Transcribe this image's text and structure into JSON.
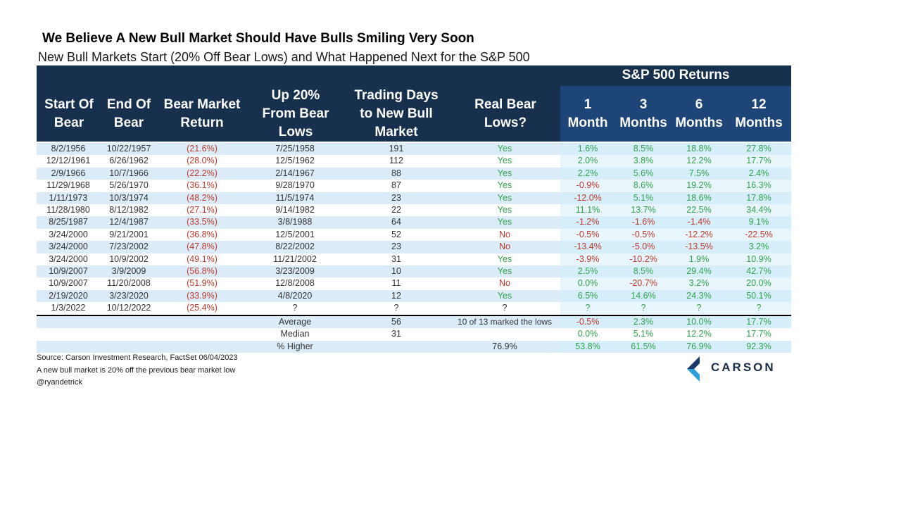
{
  "title": "We Believe A New Bull Market Should Have Bulls Smiling Very Soon",
  "subtitle": "New Bull Markets Start (20% Off Bear Lows) and What Happened Next for the S&P 500",
  "headers": {
    "start": [
      "Start Of",
      "Bear"
    ],
    "end": [
      "End Of",
      "Bear"
    ],
    "bear_return": [
      "Bear Market",
      "Return"
    ],
    "up20": [
      "Up 20%",
      "From Bear",
      "Lows"
    ],
    "days": [
      "Trading Days",
      "to New Bull",
      "Market"
    ],
    "real": [
      "Real Bear",
      "Lows?"
    ],
    "returns_title": "S&P 500 Returns",
    "m1": [
      "1",
      "Month"
    ],
    "m3": [
      "3",
      "Months"
    ],
    "m6": [
      "6",
      "Months"
    ],
    "m12": [
      "12",
      "Months"
    ]
  },
  "chart_data": {
    "type": "table",
    "columns": [
      "Start Of Bear",
      "End Of Bear",
      "Bear Market Return",
      "Up 20% From Bear Lows",
      "Trading Days to New Bull Market",
      "Real Bear Lows?",
      "1 Month",
      "3 Months",
      "6 Months",
      "12 Months"
    ],
    "rows": [
      [
        "8/2/1956",
        "10/22/1957",
        "(21.6%)",
        "7/25/1958",
        "191",
        "Yes",
        "1.6%",
        "8.5%",
        "18.8%",
        "27.8%"
      ],
      [
        "12/12/1961",
        "6/26/1962",
        "(28.0%)",
        "12/5/1962",
        "112",
        "Yes",
        "2.0%",
        "3.8%",
        "12.2%",
        "17.7%"
      ],
      [
        "2/9/1966",
        "10/7/1966",
        "(22.2%)",
        "2/14/1967",
        "88",
        "Yes",
        "2.2%",
        "5.6%",
        "7.5%",
        "2.4%"
      ],
      [
        "11/29/1968",
        "5/26/1970",
        "(36.1%)",
        "9/28/1970",
        "87",
        "Yes",
        "-0.9%",
        "8.6%",
        "19.2%",
        "16.3%"
      ],
      [
        "1/11/1973",
        "10/3/1974",
        "(48.2%)",
        "11/5/1974",
        "23",
        "Yes",
        "-12.0%",
        "5.1%",
        "18.6%",
        "17.8%"
      ],
      [
        "11/28/1980",
        "8/12/1982",
        "(27.1%)",
        "9/14/1982",
        "22",
        "Yes",
        "11.1%",
        "13.7%",
        "22.5%",
        "34.4%"
      ],
      [
        "8/25/1987",
        "12/4/1987",
        "(33.5%)",
        "3/8/1988",
        "64",
        "Yes",
        "-1.2%",
        "-1.6%",
        "-1.4%",
        "9.1%"
      ],
      [
        "3/24/2000",
        "9/21/2001",
        "(36.8%)",
        "12/5/2001",
        "52",
        "No",
        "-0.5%",
        "-0.5%",
        "-12.2%",
        "-22.5%"
      ],
      [
        "3/24/2000",
        "7/23/2002",
        "(47.8%)",
        "8/22/2002",
        "23",
        "No",
        "-13.4%",
        "-5.0%",
        "-13.5%",
        "3.2%"
      ],
      [
        "3/24/2000",
        "10/9/2002",
        "(49.1%)",
        "11/21/2002",
        "31",
        "Yes",
        "-3.9%",
        "-10.2%",
        "1.9%",
        "10.9%"
      ],
      [
        "10/9/2007",
        "3/9/2009",
        "(56.8%)",
        "3/23/2009",
        "10",
        "Yes",
        "2.5%",
        "8.5%",
        "29.4%",
        "42.7%"
      ],
      [
        "10/9/2007",
        "11/20/2008",
        "(51.9%)",
        "12/8/2008",
        "11",
        "No",
        "0.0%",
        "-20.7%",
        "3.2%",
        "20.0%"
      ],
      [
        "2/19/2020",
        "3/23/2020",
        "(33.9%)",
        "4/8/2020",
        "12",
        "Yes",
        "6.5%",
        "14.6%",
        "24.3%",
        "50.1%"
      ],
      [
        "1/3/2022",
        "10/12/2022",
        "(25.4%)",
        "?",
        "?",
        "?",
        "?",
        "?",
        "?",
        "?"
      ]
    ],
    "summary": [
      {
        "label": "Average",
        "days": "56",
        "real": "10 of 13 marked the lows",
        "m1": "-0.5%",
        "m3": "2.3%",
        "m6": "10.0%",
        "m12": "17.7%"
      },
      {
        "label": "Median",
        "days": "31",
        "real": "",
        "m1": "0.0%",
        "m3": "5.1%",
        "m6": "12.2%",
        "m12": "17.7%"
      },
      {
        "label": "% Higher",
        "days": "",
        "real": "76.9%",
        "m1": "53.8%",
        "m3": "61.5%",
        "m6": "76.9%",
        "m12": "92.3%"
      }
    ]
  },
  "footnotes": [
    "Source: Carson Investment Research, FactSet 06/04/2023",
    "A new bull market is 20% off the previous bear market low",
    "@ryandetrick"
  ],
  "logo": {
    "text": "CARSON",
    "color_dark": "#1a3a6b",
    "color_light": "#2b9fd9"
  },
  "colors": {
    "header": "#17304e",
    "negative": "#c0392b",
    "positive": "#2fa24b",
    "row_alt": "#dcebf8"
  }
}
